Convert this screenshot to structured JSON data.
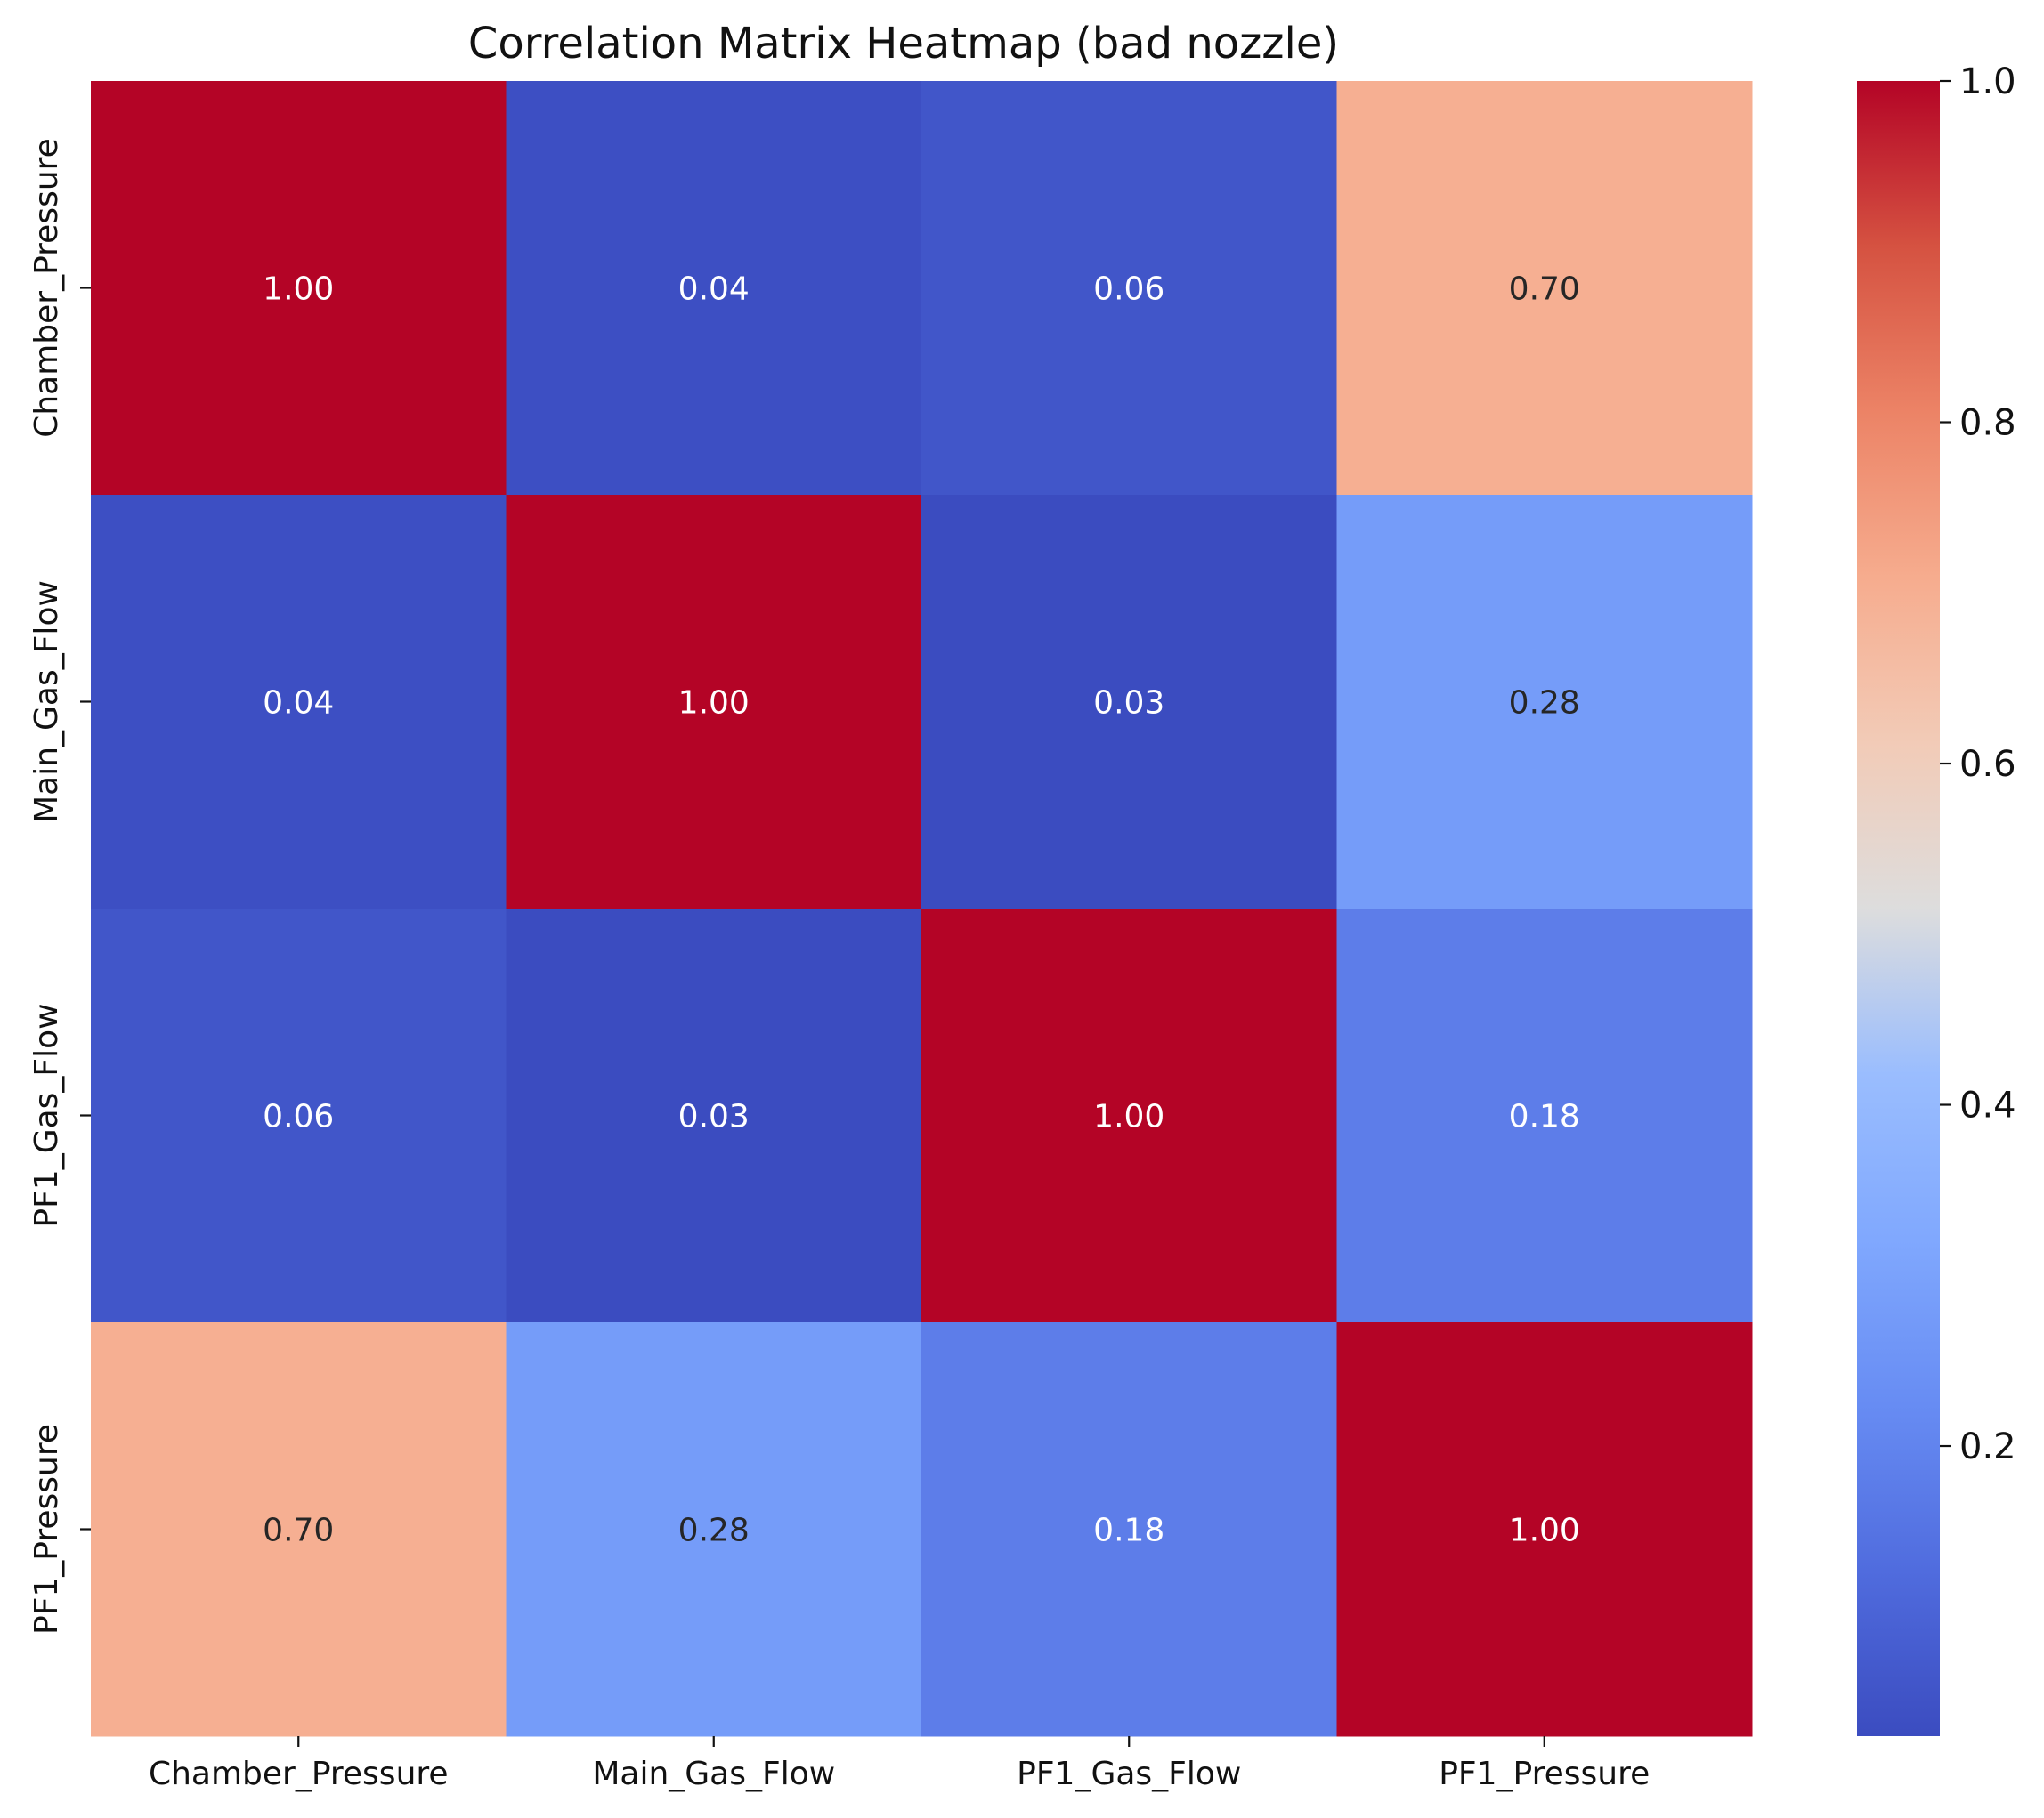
{
  "chart_data": {
    "type": "heatmap",
    "title": "Correlation Matrix Heatmap (bad nozzle)",
    "xlabel": "",
    "ylabel": "",
    "x_categories": [
      "Chamber_Pressure",
      "Main_Gas_Flow",
      "PF1_Gas_Flow",
      "PF1_Pressure"
    ],
    "y_categories": [
      "Chamber_Pressure",
      "Main_Gas_Flow",
      "PF1_Gas_Flow",
      "PF1_Pressure"
    ],
    "values": [
      [
        1.0,
        0.04,
        0.06,
        0.7
      ],
      [
        0.04,
        1.0,
        0.03,
        0.28
      ],
      [
        0.06,
        0.03,
        1.0,
        0.18
      ],
      [
        0.7,
        0.28,
        0.18,
        1.0
      ]
    ],
    "value_format": "0.00",
    "colormap": "coolwarm",
    "colorbar": {
      "range": [
        0.03,
        1.0
      ],
      "ticks": [
        0.2,
        0.4,
        0.6,
        0.8,
        1.0
      ],
      "tick_labels": [
        "0.2",
        "0.4",
        "0.6",
        "0.8",
        "1.0"
      ]
    }
  }
}
